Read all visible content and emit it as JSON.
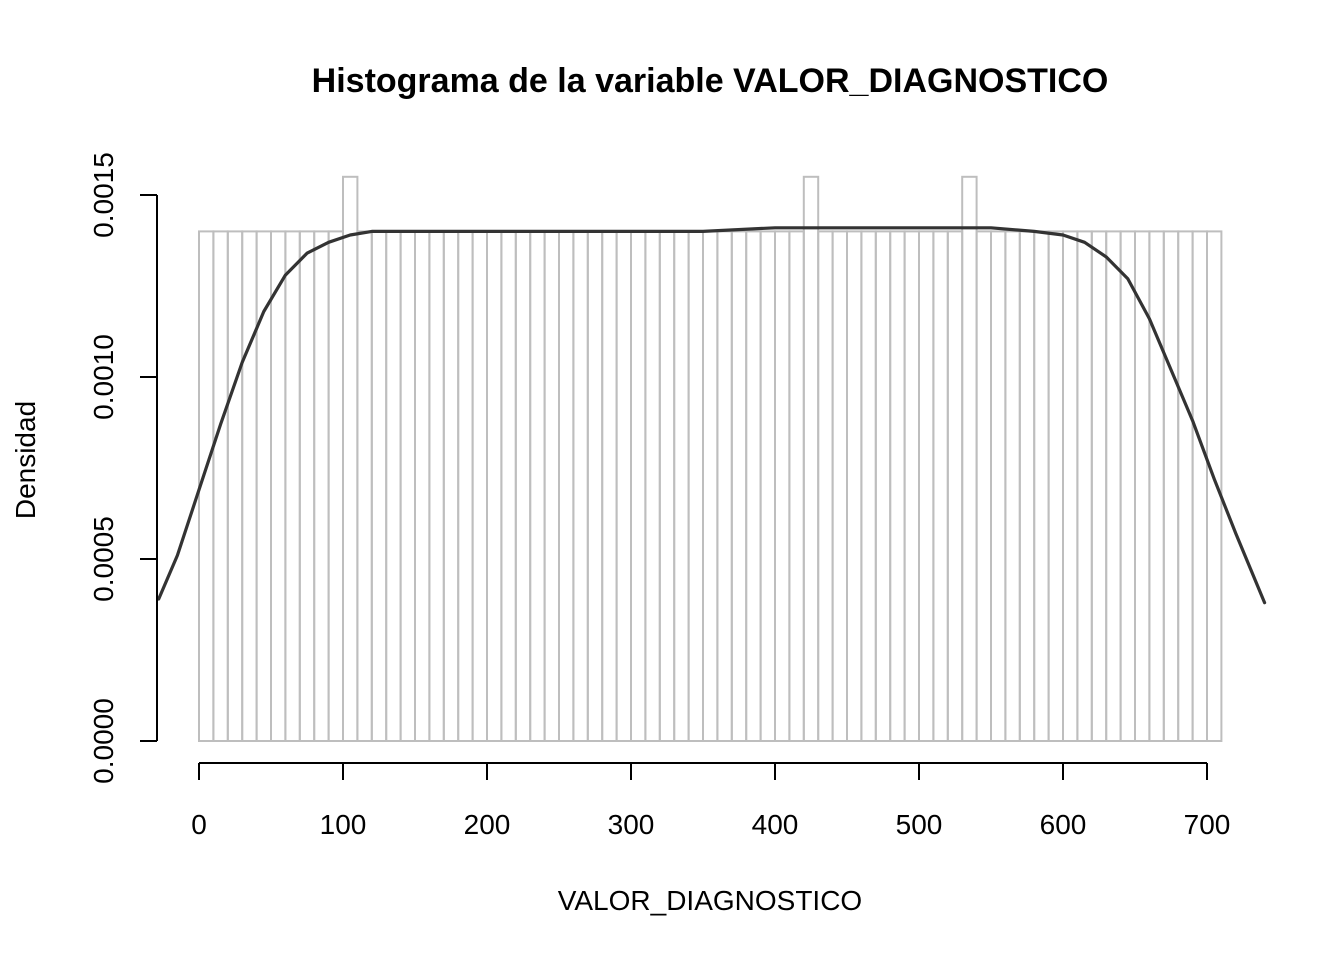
{
  "chart_data": {
    "type": "histogram",
    "title": "Histograma de la variable  VALOR_DIAGNOSTICO",
    "xlabel": "VALOR_DIAGNOSTICO",
    "ylabel": "Densidad",
    "xlim": [
      -28,
      740
    ],
    "ylim": [
      0,
      0.00165
    ],
    "x_ticks": [
      0,
      100,
      200,
      300,
      400,
      500,
      600,
      700
    ],
    "x_tick_labels": [
      "0",
      "100",
      "200",
      "300",
      "400",
      "500",
      "600",
      "700"
    ],
    "y_ticks": [
      0.0,
      0.0005,
      0.001,
      0.0015
    ],
    "y_tick_labels": [
      "0.0000",
      "0.0005",
      "0.0010",
      "0.0015"
    ],
    "grid": false,
    "bins": {
      "start": 0,
      "width": 10,
      "count": 71,
      "base_density": 0.0014,
      "exceptions": [
        {
          "bin_start": 100,
          "density": 0.00155
        },
        {
          "bin_start": 420,
          "density": 0.00155
        },
        {
          "bin_start": 530,
          "density": 0.00155
        }
      ]
    },
    "density_curve": {
      "x": [
        -28,
        -15,
        0,
        15,
        30,
        45,
        60,
        75,
        90,
        105,
        120,
        135,
        150,
        200,
        250,
        300,
        350,
        400,
        450,
        500,
        550,
        580,
        600,
        615,
        630,
        645,
        660,
        675,
        690,
        705,
        720,
        740
      ],
      "y": [
        0.00039,
        0.00051,
        0.00069,
        0.00087,
        0.00104,
        0.00118,
        0.00128,
        0.00134,
        0.00137,
        0.00139,
        0.0014,
        0.0014,
        0.0014,
        0.0014,
        0.0014,
        0.0014,
        0.0014,
        0.00141,
        0.00141,
        0.00141,
        0.00141,
        0.0014,
        0.00139,
        0.00137,
        0.00133,
        0.00127,
        0.00116,
        0.00102,
        0.00088,
        0.00072,
        0.00057,
        0.00038
      ]
    }
  }
}
